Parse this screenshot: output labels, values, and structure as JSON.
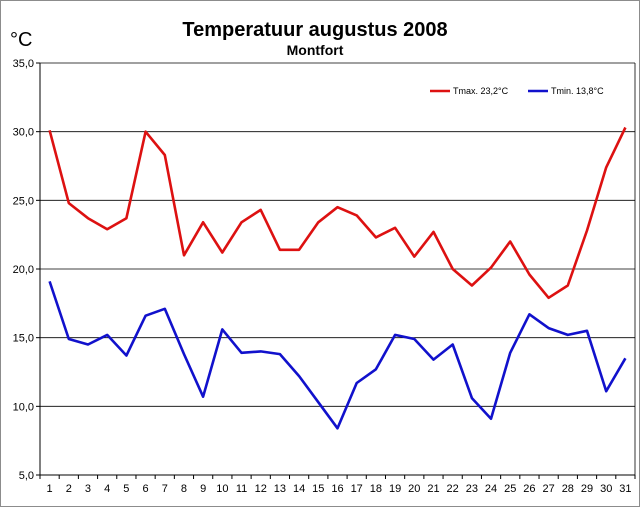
{
  "chart_data": {
    "type": "line",
    "title": "Temperatuur augustus 2008",
    "subtitle": "Montfort",
    "ylabel": "°C",
    "xlabel": "",
    "ylim": [
      5,
      35
    ],
    "yticks": [
      5,
      10,
      15,
      20,
      25,
      30,
      35
    ],
    "ytick_labels": [
      "5,0",
      "10,0",
      "15,0",
      "20,0",
      "25,0",
      "30,0",
      "35,0"
    ],
    "grid": "horizontal",
    "legend_position": "top-right",
    "x": [
      1,
      2,
      3,
      4,
      5,
      6,
      7,
      8,
      9,
      10,
      11,
      12,
      13,
      14,
      15,
      16,
      17,
      18,
      19,
      20,
      21,
      22,
      23,
      24,
      25,
      26,
      27,
      28,
      29,
      30,
      31
    ],
    "x_labels": [
      "1",
      "2",
      "3",
      "4",
      "5",
      "6",
      "7",
      "8",
      "9",
      "10",
      "11",
      "12",
      "13",
      "14",
      "15",
      "16",
      "17",
      "18",
      "19",
      "20",
      "21",
      "22",
      "23",
      "24",
      "25",
      "26",
      "27",
      "28",
      "29",
      "30",
      "31"
    ],
    "series": [
      {
        "name": "Tmax. 23,2°C",
        "color": "#dd1111",
        "values": [
          30.1,
          24.8,
          23.7,
          22.9,
          23.7,
          30.0,
          28.3,
          21.0,
          23.4,
          21.2,
          23.4,
          24.3,
          21.4,
          21.4,
          23.4,
          24.5,
          23.9,
          22.3,
          23.0,
          20.9,
          22.7,
          20.0,
          18.8,
          20.1,
          22.0,
          19.6,
          17.9,
          18.8,
          22.8,
          27.4,
          30.3
        ]
      },
      {
        "name": "Tmin. 13,8°C",
        "color": "#1111cc",
        "values": [
          19.1,
          14.9,
          14.5,
          15.2,
          13.7,
          16.6,
          17.1,
          13.8,
          10.7,
          15.6,
          13.9,
          14.0,
          13.8,
          12.2,
          10.3,
          8.4,
          11.7,
          12.7,
          15.2,
          14.9,
          13.4,
          14.5,
          10.6,
          9.1,
          13.9,
          16.7,
          15.7,
          15.2,
          15.5,
          11.1,
          13.5
        ]
      }
    ]
  }
}
